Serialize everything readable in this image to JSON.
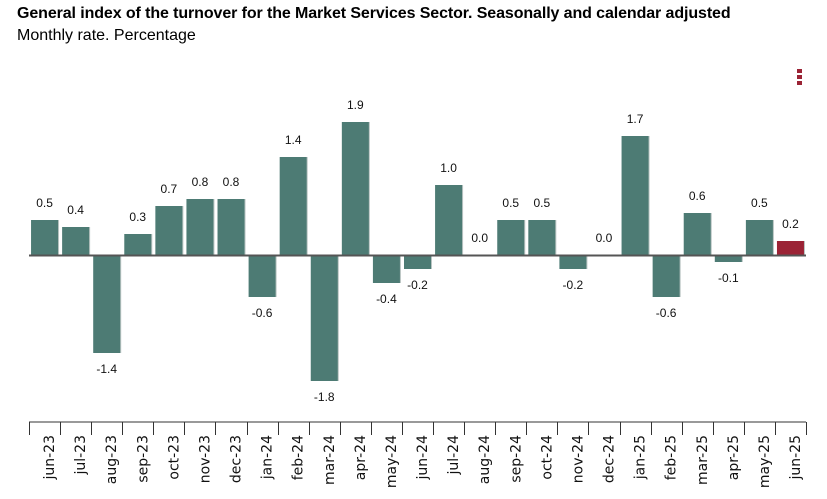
{
  "header": {
    "title": "General index of the turnover for the Market Services Sector. Seasonally and calendar adjusted",
    "subtitle": "Monthly rate. Percentage"
  },
  "menu": {
    "icon": "kebab-menu-icon"
  },
  "colors": {
    "bar": "#4d7b74",
    "highlight": "#9b2335",
    "zero_line": "#555555"
  },
  "chart_data": {
    "type": "bar",
    "title": "General index of the turnover for the Market Services Sector. Seasonally and calendar adjusted",
    "subtitle": "Monthly rate. Percentage",
    "xlabel": "",
    "ylabel": "",
    "categories": [
      "jun-23",
      "jul-23",
      "aug-23",
      "sep-23",
      "oct-23",
      "nov-23",
      "dec-23",
      "jan-24",
      "feb-24",
      "mar-24",
      "apr-24",
      "may-24",
      "jun-24",
      "jul-24",
      "aug-24",
      "sep-24",
      "oct-24",
      "nov-24",
      "dec-24",
      "jan-25",
      "feb-25",
      "mar-25",
      "apr-25",
      "may-25",
      "jun-25"
    ],
    "values": [
      0.5,
      0.4,
      -1.4,
      0.3,
      0.7,
      0.8,
      0.8,
      -0.6,
      1.4,
      -1.8,
      1.9,
      -0.4,
      -0.2,
      1.0,
      0.0,
      0.5,
      0.5,
      -0.2,
      0.0,
      1.7,
      -0.6,
      0.6,
      -0.1,
      0.5,
      0.2
    ],
    "labels": [
      "0.5",
      "0.4",
      "-1.4",
      "0.3",
      "0.7",
      "0.8",
      "0.8",
      "-0.6",
      "1.4",
      "-1.8",
      "1.9",
      "-0.4",
      "-0.2",
      "1.0",
      "0.0",
      "0.5",
      "0.5",
      "-0.2",
      "0.0",
      "1.7",
      "-0.6",
      "0.6",
      "-0.1",
      "0.5",
      "0.2"
    ],
    "highlight_index": 24,
    "ylim": [
      -1.8,
      1.9
    ],
    "grid": false,
    "legend": "none",
    "data_labels": true
  }
}
